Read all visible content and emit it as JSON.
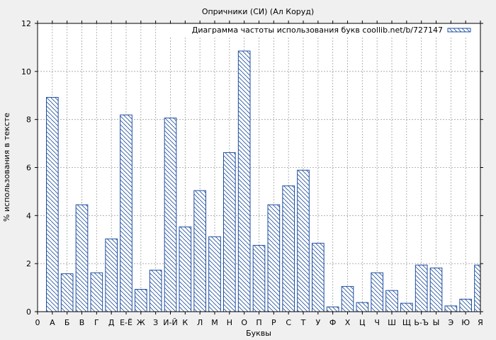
{
  "chart_data": {
    "type": "bar",
    "title": "Опричники (СИ) (Ал Коруд)",
    "xlabel": "Буквы",
    "ylabel": "% использования в тексте",
    "legend": {
      "label": "Диаграмма частоты использования букв coollib.net/b/727147",
      "placement": "top-right"
    },
    "grid": true,
    "ylim": [
      0,
      12
    ],
    "yticks": [
      "0",
      "2",
      "4",
      "6",
      "8",
      "10",
      "12"
    ],
    "x_tick_labels": [
      "0",
      "А",
      "Б",
      "В",
      "Г",
      "Д",
      "Е-Ё",
      "Ж",
      "З",
      "И-Й",
      "К",
      "Л",
      "М",
      "Н",
      "О",
      "П",
      "Р",
      "С",
      "Т",
      "У",
      "Ф",
      "Х",
      "Ц",
      "Ч",
      "Ш",
      "Щ",
      "Ь-Ъ",
      "Ы",
      "Э",
      "Ю",
      "Я"
    ],
    "categories": [
      "А",
      "Б",
      "В",
      "Г",
      "Д",
      "Е-Ё",
      "Ж",
      "З",
      "И-Й",
      "К",
      "Л",
      "М",
      "Н",
      "О",
      "П",
      "Р",
      "С",
      "Т",
      "У",
      "Ф",
      "Х",
      "Ц",
      "Ч",
      "Ш",
      "Щ",
      "Ь-Ъ",
      "Ы",
      "Э",
      "Ю",
      "Я"
    ],
    "values": [
      8.92,
      1.58,
      4.45,
      1.62,
      3.03,
      8.19,
      0.93,
      1.73,
      8.06,
      3.53,
      5.04,
      3.12,
      6.62,
      10.85,
      2.76,
      4.45,
      5.24,
      5.89,
      2.85,
      0.2,
      1.05,
      0.38,
      1.62,
      0.88,
      0.35,
      1.94,
      1.82,
      0.24,
      0.52,
      1.94
    ],
    "colors": {
      "bar_stroke": "#1f4fa0",
      "hatch": "#1f4fa0",
      "bar_fill": "#ffffff",
      "plot_background": "#ffffff",
      "page_background": "#f0f0f0",
      "grid": "#a0a0a0"
    }
  }
}
